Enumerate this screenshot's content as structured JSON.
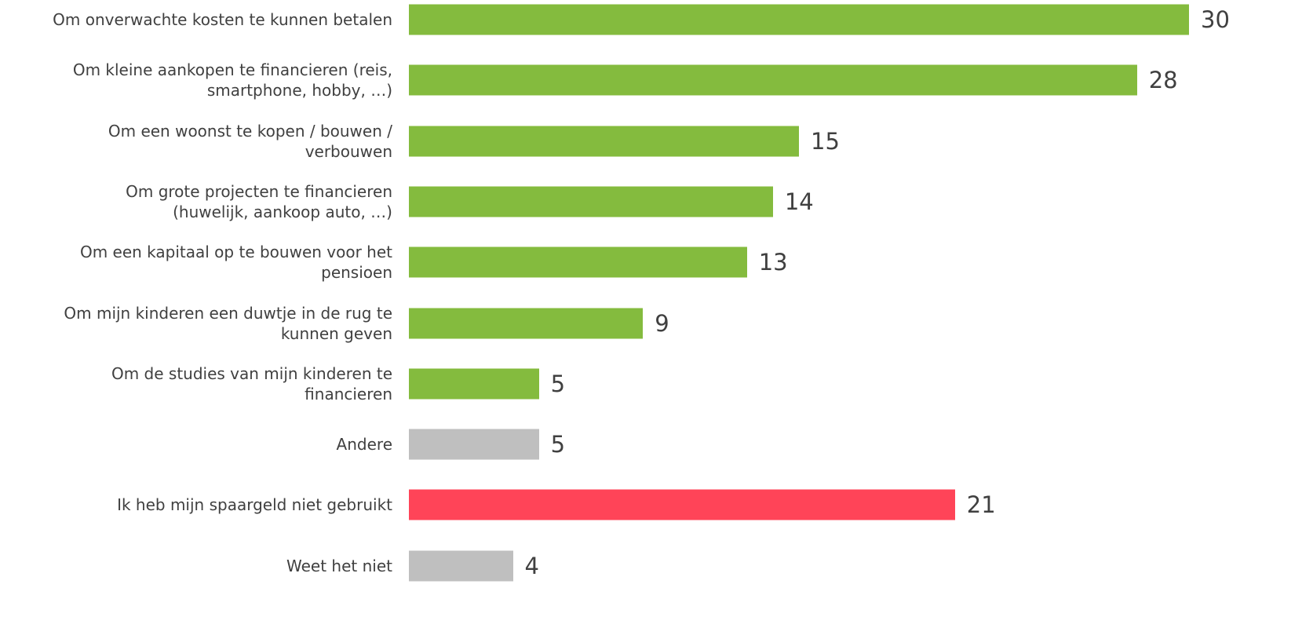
{
  "chart_data": {
    "type": "bar",
    "orientation": "horizontal",
    "categories": [
      "Om onverwachte kosten te kunnen betalen",
      "Om kleine aankopen te financieren (reis,\nsmartphone, hobby, …)",
      "Om een woonst te kopen / bouwen /\nverbouwen",
      "Om grote projecten te financieren\n(huwelijk, aankoop auto, …)",
      "Om een kapitaal op te bouwen voor het\npensioen",
      "Om mijn kinderen een duwtje in de rug te\nkunnen geven",
      "Om de studies van mijn kinderen te\nfinancieren",
      "Andere",
      "Ik heb mijn spaargeld niet gebruikt",
      "Weet het  niet"
    ],
    "values": [
      30,
      28,
      15,
      14,
      13,
      9,
      5,
      5,
      21,
      4
    ],
    "colors": [
      "#84bb3e",
      "#84bb3e",
      "#84bb3e",
      "#84bb3e",
      "#84bb3e",
      "#84bb3e",
      "#84bb3e",
      "#bfbfbf",
      "#ff4458",
      "#bfbfbf"
    ]
  }
}
